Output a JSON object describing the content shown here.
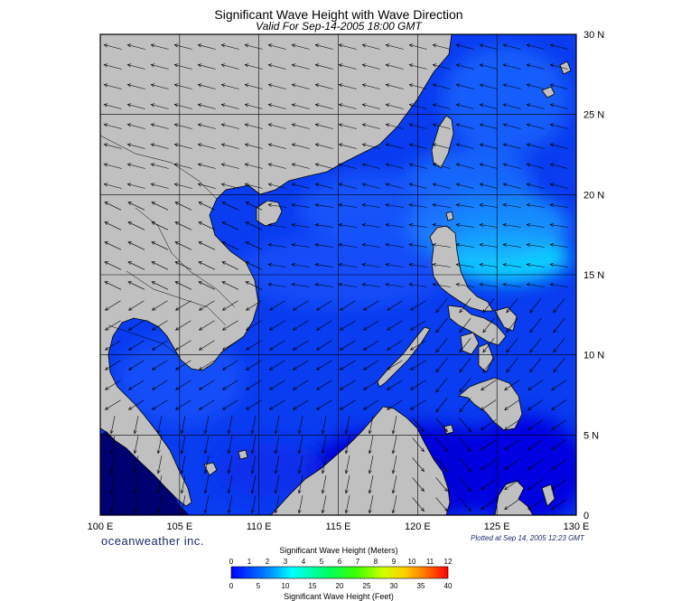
{
  "title": "Significant Wave Height with Wave Direction",
  "subtitle": "Valid For Sep-14-2005 18:00 GMT",
  "map": {
    "lon_labels": [
      "100 E",
      "105 E",
      "110 E",
      "115 E",
      "120 E",
      "125 E",
      "130 E"
    ],
    "lat_labels": [
      "30 N",
      "25 N",
      "20 N",
      "15 N",
      "10 N",
      "5 N",
      "0"
    ],
    "land_color": "#c0c0c0",
    "sea_base_color": "#0a3cf0"
  },
  "brand": "oceanweather inc.",
  "plotted": "Plotted at Sep 14, 2005 12:23 GMT",
  "colorbar": {
    "title": "Significant Wave Height (Meters)",
    "meters": [
      "0",
      "1",
      "2",
      "3",
      "4",
      "5",
      "6",
      "7",
      "8",
      "9",
      "10",
      "11",
      "12"
    ],
    "feet": [
      "0",
      "5",
      "10",
      "15",
      "20",
      "25",
      "30",
      "35",
      "40"
    ],
    "footer": "Significant Wave Height (Feet)",
    "colors": [
      "#0000ff",
      "#00a0ff",
      "#00ffff",
      "#00ff80",
      "#00ff00",
      "#a0ff00",
      "#ffff00",
      "#ffc000",
      "#ff8000",
      "#ff0000"
    ]
  }
}
